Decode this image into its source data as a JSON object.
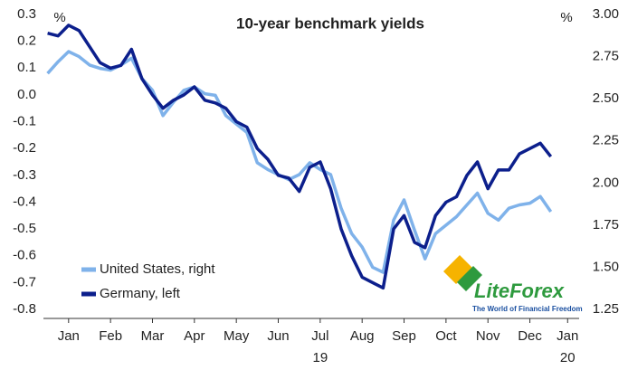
{
  "chart_data": {
    "type": "line",
    "title": "10-year benchmark yields",
    "y_label": "%",
    "y2_label": "%",
    "x": [
      0,
      0.25,
      0.5,
      0.75,
      1,
      1.25,
      1.5,
      1.75,
      2,
      2.25,
      2.5,
      2.75,
      3,
      3.25,
      3.5,
      3.75,
      4,
      4.25,
      4.5,
      4.75,
      5,
      5.25,
      5.5,
      5.75,
      6,
      6.25,
      6.5,
      6.75,
      7,
      7.25,
      7.5,
      7.75,
      8,
      8.25,
      8.5,
      8.75,
      9,
      9.25,
      9.5,
      9.75,
      10,
      10.25,
      10.5,
      10.75,
      11,
      11.25,
      11.5,
      11.75,
      12
    ],
    "xlim": [
      -0.1,
      12.2
    ],
    "xticks": [
      {
        "value": 0.5,
        "label": "Jan"
      },
      {
        "value": 1.5,
        "label": "Feb"
      },
      {
        "value": 2.5,
        "label": "Mar"
      },
      {
        "value": 3.5,
        "label": "Apr"
      },
      {
        "value": 4.5,
        "label": "May"
      },
      {
        "value": 5.5,
        "label": "Jun"
      },
      {
        "value": 6.5,
        "label": "Jul"
      },
      {
        "value": 7.5,
        "label": "Aug"
      },
      {
        "value": 8.5,
        "label": "Sep"
      },
      {
        "value": 9.5,
        "label": "Oct"
      },
      {
        "value": 10.5,
        "label": "Nov"
      },
      {
        "value": 11.5,
        "label": "Dec"
      },
      {
        "value": 12.4,
        "label": "Jan"
      }
    ],
    "year_labels": [
      {
        "value": 6.5,
        "label": "19"
      },
      {
        "value": 12.4,
        "label": "20"
      }
    ],
    "ylim": [
      -0.8,
      0.3
    ],
    "yticks": [
      0.3,
      0.2,
      0.1,
      {
        "value": 0,
        "label": "0.0"
      },
      -0.1,
      -0.2,
      -0.3,
      -0.4,
      -0.5,
      -0.6,
      -0.7,
      -0.8
    ],
    "y2lim": [
      1.25,
      3.0
    ],
    "y2ticks": [
      {
        "value": 3,
        "label": "3.00"
      },
      2.75,
      {
        "value": 2.5,
        "label": "2.50"
      },
      2.25,
      {
        "value": 2,
        "label": "2.00"
      },
      1.75,
      {
        "value": 1.5,
        "label": "1.50"
      },
      1.25
    ],
    "series": [
      {
        "name": "United States, right",
        "color": "#7fb2ea",
        "axis": "y2",
        "values": [
          2.65,
          2.72,
          2.78,
          2.75,
          2.7,
          2.68,
          2.67,
          2.7,
          2.74,
          2.62,
          2.55,
          2.4,
          2.48,
          2.55,
          2.57,
          2.53,
          2.52,
          2.4,
          2.35,
          2.3,
          2.12,
          2.08,
          2.05,
          2.02,
          2.05,
          2.12,
          2.08,
          2.05,
          1.85,
          1.7,
          1.62,
          1.5,
          1.47,
          1.78,
          1.9,
          1.72,
          1.55,
          1.7,
          1.75,
          1.8,
          1.87,
          1.94,
          1.82,
          1.78,
          1.85,
          1.87,
          1.88,
          1.92,
          1.83
        ]
      },
      {
        "name": "Germany, left",
        "color": "#0c1f8c",
        "values": [
          0.23,
          0.22,
          0.26,
          0.24,
          0.18,
          0.12,
          0.1,
          0.11,
          0.17,
          0.06,
          0.0,
          -0.05,
          -0.02,
          0.0,
          0.03,
          -0.02,
          -0.03,
          -0.05,
          -0.1,
          -0.12,
          -0.2,
          -0.24,
          -0.3,
          -0.31,
          -0.36,
          -0.27,
          -0.25,
          -0.35,
          -0.5,
          -0.6,
          -0.68,
          -0.7,
          -0.72,
          -0.5,
          -0.45,
          -0.55,
          -0.57,
          -0.45,
          -0.4,
          -0.38,
          -0.3,
          -0.25,
          -0.35,
          -0.28,
          -0.28,
          -0.22,
          -0.2,
          -0.18,
          -0.23
        ]
      }
    ]
  },
  "watermark": {
    "brand": "LiteForex",
    "tagline": "The World of Financial Freedom"
  }
}
